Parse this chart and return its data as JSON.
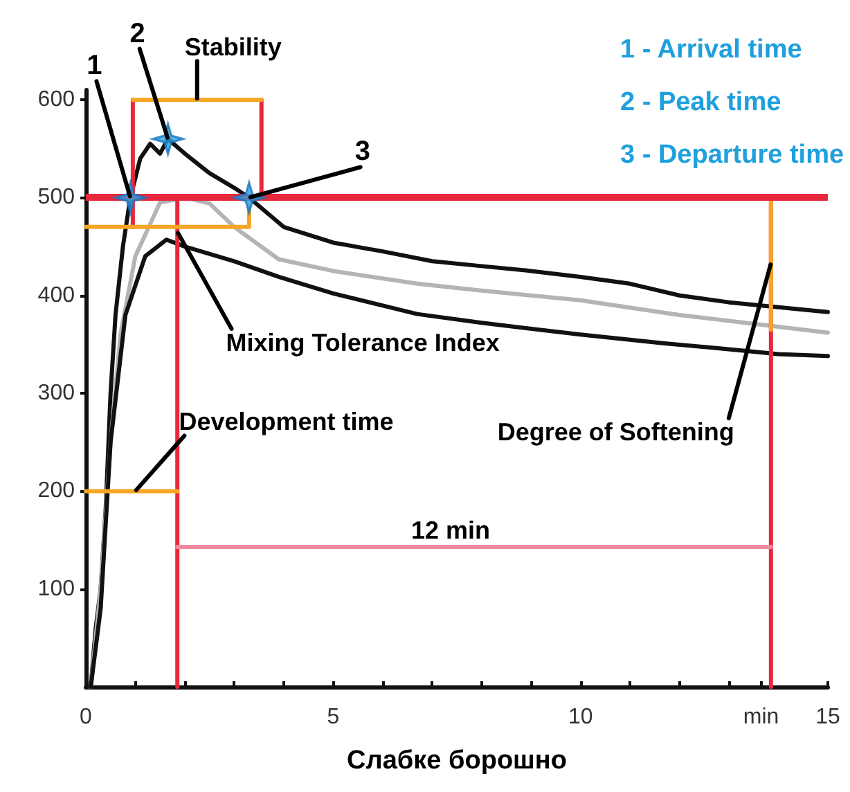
{
  "chart_data": {
    "type": "line",
    "xlabel": "Слабке борошно",
    "xlim": [
      0,
      15
    ],
    "ylim": [
      0,
      610
    ],
    "xticks": [
      0,
      {
        "value": 1,
        "label": null
      },
      {
        "value": 2,
        "label": null
      },
      {
        "value": 3,
        "label": null
      },
      {
        "value": 4,
        "label": null
      },
      5,
      {
        "value": 6,
        "label": null
      },
      {
        "value": 7,
        "label": null
      },
      {
        "value": 8,
        "label": null
      },
      {
        "value": 9,
        "label": null
      },
      10,
      {
        "value": 11,
        "label": null
      },
      {
        "value": 12,
        "label": null
      },
      {
        "value": 13,
        "label": null
      },
      {
        "value": 13.65,
        "label": "min"
      },
      15
    ],
    "yticks": [
      100,
      200,
      300,
      400,
      500,
      600
    ],
    "grid": false,
    "marker": "none",
    "line_style": "solid",
    "series": [
      {
        "color": "#111111",
        "x": [
          0.1,
          0.2,
          0.3,
          0.4,
          0.5,
          0.6,
          0.75,
          0.9,
          1.1,
          1.3,
          1.5,
          1.66,
          2,
          2.5,
          3,
          3.3,
          4,
          5,
          6,
          7,
          8,
          9,
          10,
          11,
          12,
          13,
          14,
          15
        ],
        "values": [
          0,
          60,
          100,
          180,
          300,
          380,
          450,
          500,
          540,
          555,
          545,
          560,
          545,
          525,
          510,
          500,
          470,
          454,
          445,
          435,
          430,
          425,
          419,
          412,
          400,
          393,
          388,
          383
        ]
      },
      {
        "color": "#b4b4b4",
        "x": [
          0.1,
          0.3,
          0.5,
          0.7,
          1,
          1.5,
          2,
          2.5,
          3,
          3.9,
          5,
          6.7,
          8,
          10,
          12,
          14,
          15
        ],
        "values": [
          0,
          100,
          250,
          360,
          440,
          495,
          500,
          494,
          470,
          437,
          425,
          412,
          405,
          395,
          380,
          368,
          362
        ]
      },
      {
        "color": "#111111",
        "x": [
          0.1,
          0.3,
          0.5,
          0.8,
          1.2,
          1.63,
          2,
          3,
          3.9,
          5,
          6.7,
          8,
          10,
          11.7,
          13,
          14,
          15
        ],
        "values": [
          0,
          80,
          250,
          380,
          440,
          457,
          450,
          435,
          419,
          402,
          381,
          372,
          360,
          351,
          345,
          340,
          338
        ]
      },
      {
        "type": "scatter",
        "marker": "star",
        "color": "#2b9fe0",
        "x": [
          0.9,
          1.66,
          3.3
        ],
        "values": [
          500,
          560,
          500
        ]
      },
      {
        "color": "#e8283c",
        "x": [
          1.85,
          1.85
        ],
        "values": [
          0,
          500
        ]
      },
      {
        "color": "#e8283c",
        "x": [
          13.85,
          13.85
        ],
        "values": [
          0,
          500
        ]
      },
      {
        "color": "#e8283c",
        "x": [
          0.95,
          0.95
        ],
        "values": [
          470,
          600
        ]
      },
      {
        "color": "#e8283c",
        "x": [
          3.55,
          3.55
        ],
        "values": [
          500,
          600
        ]
      },
      {
        "color": "#f5a623",
        "x": [
          0.95,
          3.55
        ],
        "values": [
          600,
          600
        ]
      },
      {
        "color": "#f5a623",
        "x": [
          0,
          3.3,
          3.3
        ],
        "values": [
          470,
          470,
          490
        ]
      },
      {
        "color": "#f5a623",
        "x": [
          0,
          1.85
        ],
        "values": [
          200,
          200
        ]
      },
      {
        "color": "#f5a623",
        "x": [
          13.85,
          13.85
        ],
        "values": [
          500,
          365
        ]
      },
      {
        "color": "#f08aa0",
        "x": [
          1.85,
          13.85
        ],
        "values": [
          143,
          143
        ]
      }
    ],
    "ref_lines": [
      {
        "axis": "y",
        "value": 500,
        "color": "#e8283c"
      }
    ],
    "annotations": [
      {
        "text": "1",
        "x": 0.9,
        "y": 500
      },
      {
        "text": "2",
        "x": 1.66,
        "y": 560
      },
      {
        "text": "3",
        "x": 3.3,
        "y": 500
      },
      "1 - Arrival time",
      "2 - Peak time",
      "3 - Departure time",
      {
        "text": "Stability",
        "x": 2.25,
        "y": 600
      },
      {
        "text": "Mixing Tolerance Index",
        "x": 1.85,
        "y": 465
      },
      {
        "text": "Development time",
        "x": 1.0,
        "y": 200
      },
      {
        "text": "Degree of Softening",
        "x": 13.85,
        "y": 433
      },
      {
        "text": "12 min",
        "x": 7.85,
        "y": 143
      }
    ]
  }
}
